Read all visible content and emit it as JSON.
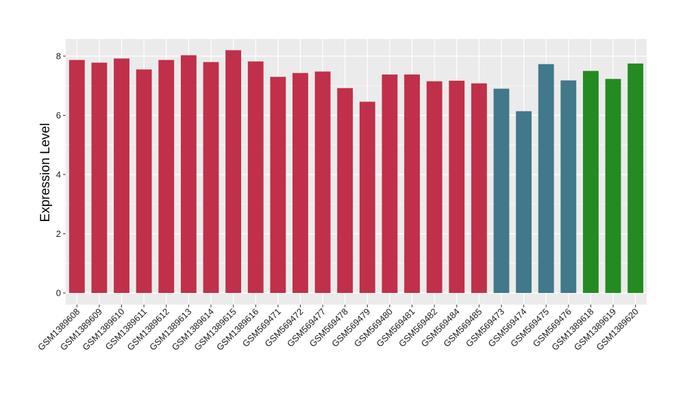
{
  "chart_data": {
    "type": "bar",
    "xlabel": "",
    "ylabel": "Expression Level",
    "ylim": [
      0,
      8.5
    ],
    "yticks": [
      0,
      2,
      4,
      6,
      8
    ],
    "grid": true,
    "legend": "none",
    "categories": [
      "GSM1389608",
      "GSM1389609",
      "GSM1389610",
      "GSM1389611",
      "GSM1389612",
      "GSM1389613",
      "GSM1389614",
      "GSM1389615",
      "GSM1389616",
      "GSM569471",
      "GSM569472",
      "GSM569477",
      "GSM569478",
      "GSM569479",
      "GSM569480",
      "GSM569481",
      "GSM569482",
      "GSM569484",
      "GSM569485",
      "GSM569473",
      "GSM569474",
      "GSM569475",
      "GSM569476",
      "GSM1389618",
      "GSM1389619",
      "GSM1389620"
    ],
    "values": [
      7.87,
      7.78,
      7.92,
      7.55,
      7.87,
      8.03,
      7.8,
      8.2,
      7.82,
      7.3,
      7.43,
      7.48,
      6.92,
      6.46,
      7.38,
      7.38,
      7.15,
      7.17,
      7.08,
      6.9,
      6.14,
      7.73,
      7.18,
      7.5,
      7.23,
      7.75
    ],
    "groups": [
      0,
      0,
      0,
      0,
      0,
      0,
      0,
      0,
      0,
      0,
      0,
      0,
      0,
      0,
      0,
      0,
      0,
      0,
      0,
      1,
      1,
      1,
      1,
      2,
      2,
      2
    ],
    "group_colors": [
      "#c0304a",
      "#41788a",
      "#238b22"
    ],
    "panel_background": "#ebebeb",
    "grid_color": "#ffffff"
  }
}
